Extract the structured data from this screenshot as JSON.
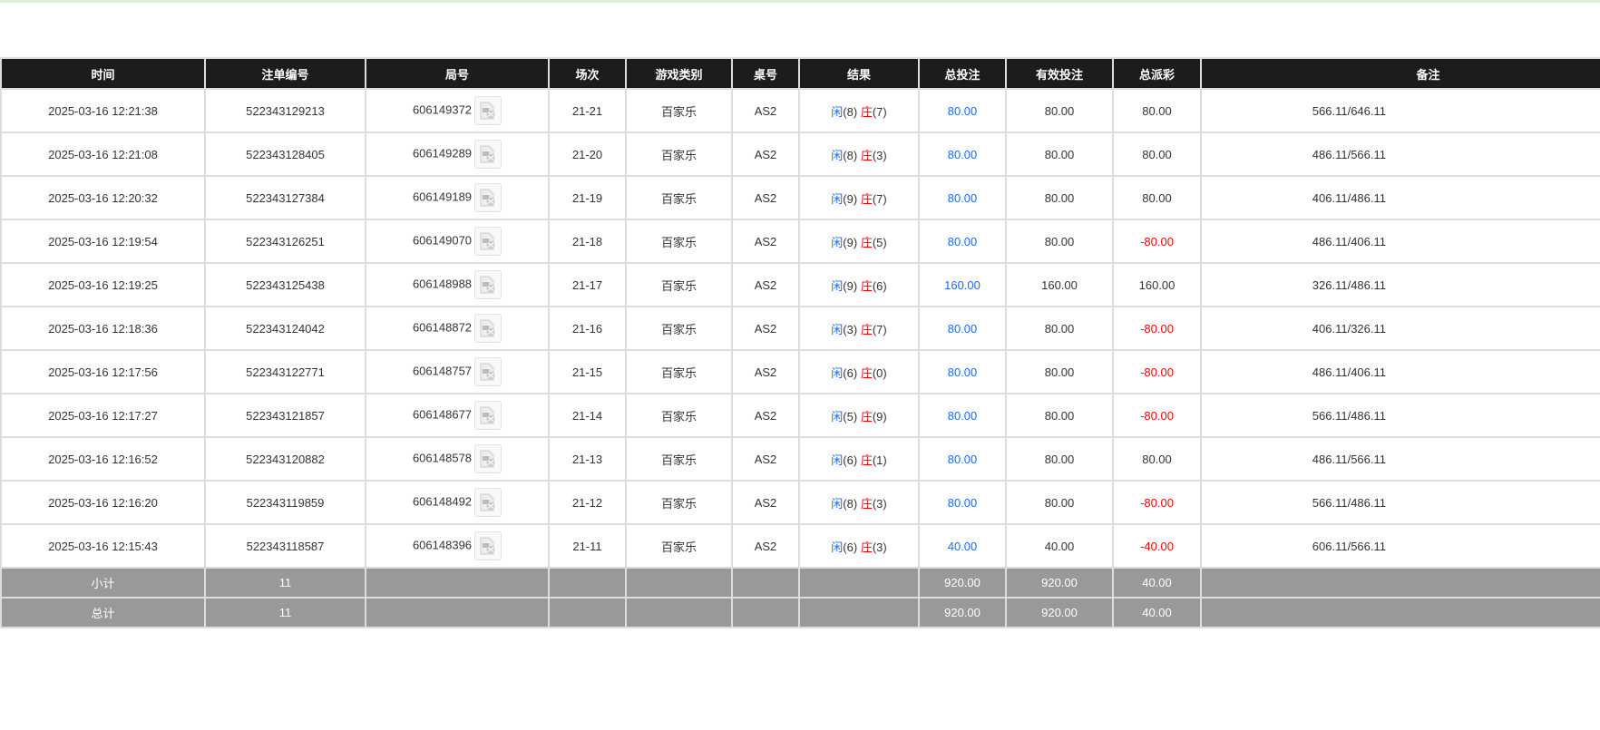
{
  "headers": [
    "时间",
    "注单编号",
    "局号",
    "场次",
    "游戏类别",
    "桌号",
    "结果",
    "总投注",
    "有效投注",
    "总派彩",
    "备注"
  ],
  "result_labels": {
    "player": "闲",
    "banker": "庄"
  },
  "colors": {
    "player": "#1e6cf0",
    "banker": "#ff0000",
    "negative": "#ff0000",
    "header_bg": "#1c1c1c",
    "summary_bg": "#999999"
  },
  "rows": [
    {
      "time": "2025-03-16 12:21:38",
      "bet_id": "522343129213",
      "round": "606149372",
      "shoe": "21-21",
      "game": "百家乐",
      "table": "AS2",
      "player": "(8)",
      "banker": "(7)",
      "total_bet": "80.00",
      "valid_bet": "80.00",
      "payout": "80.00",
      "payout_negative": false,
      "remark": "566.11/646.11"
    },
    {
      "time": "2025-03-16 12:21:08",
      "bet_id": "522343128405",
      "round": "606149289",
      "shoe": "21-20",
      "game": "百家乐",
      "table": "AS2",
      "player": "(8)",
      "banker": "(3)",
      "total_bet": "80.00",
      "valid_bet": "80.00",
      "payout": "80.00",
      "payout_negative": false,
      "remark": "486.11/566.11"
    },
    {
      "time": "2025-03-16 12:20:32",
      "bet_id": "522343127384",
      "round": "606149189",
      "shoe": "21-19",
      "game": "百家乐",
      "table": "AS2",
      "player": "(9)",
      "banker": "(7)",
      "total_bet": "80.00",
      "valid_bet": "80.00",
      "payout": "80.00",
      "payout_negative": false,
      "remark": "406.11/486.11"
    },
    {
      "time": "2025-03-16 12:19:54",
      "bet_id": "522343126251",
      "round": "606149070",
      "shoe": "21-18",
      "game": "百家乐",
      "table": "AS2",
      "player": "(9)",
      "banker": "(5)",
      "total_bet": "80.00",
      "valid_bet": "80.00",
      "payout": "-80.00",
      "payout_negative": true,
      "remark": "486.11/406.11"
    },
    {
      "time": "2025-03-16 12:19:25",
      "bet_id": "522343125438",
      "round": "606148988",
      "shoe": "21-17",
      "game": "百家乐",
      "table": "AS2",
      "player": "(9)",
      "banker": "(6)",
      "total_bet": "160.00",
      "valid_bet": "160.00",
      "payout": "160.00",
      "payout_negative": false,
      "remark": "326.11/486.11"
    },
    {
      "time": "2025-03-16 12:18:36",
      "bet_id": "522343124042",
      "round": "606148872",
      "shoe": "21-16",
      "game": "百家乐",
      "table": "AS2",
      "player": "(3)",
      "banker": "(7)",
      "total_bet": "80.00",
      "valid_bet": "80.00",
      "payout": "-80.00",
      "payout_negative": true,
      "remark": "406.11/326.11"
    },
    {
      "time": "2025-03-16 12:17:56",
      "bet_id": "522343122771",
      "round": "606148757",
      "shoe": "21-15",
      "game": "百家乐",
      "table": "AS2",
      "player": "(6)",
      "banker": "(0)",
      "total_bet": "80.00",
      "valid_bet": "80.00",
      "payout": "-80.00",
      "payout_negative": true,
      "remark": "486.11/406.11"
    },
    {
      "time": "2025-03-16 12:17:27",
      "bet_id": "522343121857",
      "round": "606148677",
      "shoe": "21-14",
      "game": "百家乐",
      "table": "AS2",
      "player": "(5)",
      "banker": "(9)",
      "total_bet": "80.00",
      "valid_bet": "80.00",
      "payout": "-80.00",
      "payout_negative": true,
      "remark": "566.11/486.11"
    },
    {
      "time": "2025-03-16 12:16:52",
      "bet_id": "522343120882",
      "round": "606148578",
      "shoe": "21-13",
      "game": "百家乐",
      "table": "AS2",
      "player": "(6)",
      "banker": "(1)",
      "total_bet": "80.00",
      "valid_bet": "80.00",
      "payout": "80.00",
      "payout_negative": false,
      "remark": "486.11/566.11"
    },
    {
      "time": "2025-03-16 12:16:20",
      "bet_id": "522343119859",
      "round": "606148492",
      "shoe": "21-12",
      "game": "百家乐",
      "table": "AS2",
      "player": "(8)",
      "banker": "(3)",
      "total_bet": "80.00",
      "valid_bet": "80.00",
      "payout": "-80.00",
      "payout_negative": true,
      "remark": "566.11/486.11"
    },
    {
      "time": "2025-03-16 12:15:43",
      "bet_id": "522343118587",
      "round": "606148396",
      "shoe": "21-11",
      "game": "百家乐",
      "table": "AS2",
      "player": "(6)",
      "banker": "(3)",
      "total_bet": "40.00",
      "valid_bet": "40.00",
      "payout": "-40.00",
      "payout_negative": true,
      "remark": "606.11/566.11"
    }
  ],
  "subtotal": {
    "label": "小计",
    "count": "11",
    "total_bet": "920.00",
    "valid_bet": "920.00",
    "payout": "40.00"
  },
  "grandtotal": {
    "label": "总计",
    "count": "11",
    "total_bet": "920.00",
    "valid_bet": "920.00",
    "payout": "40.00"
  }
}
